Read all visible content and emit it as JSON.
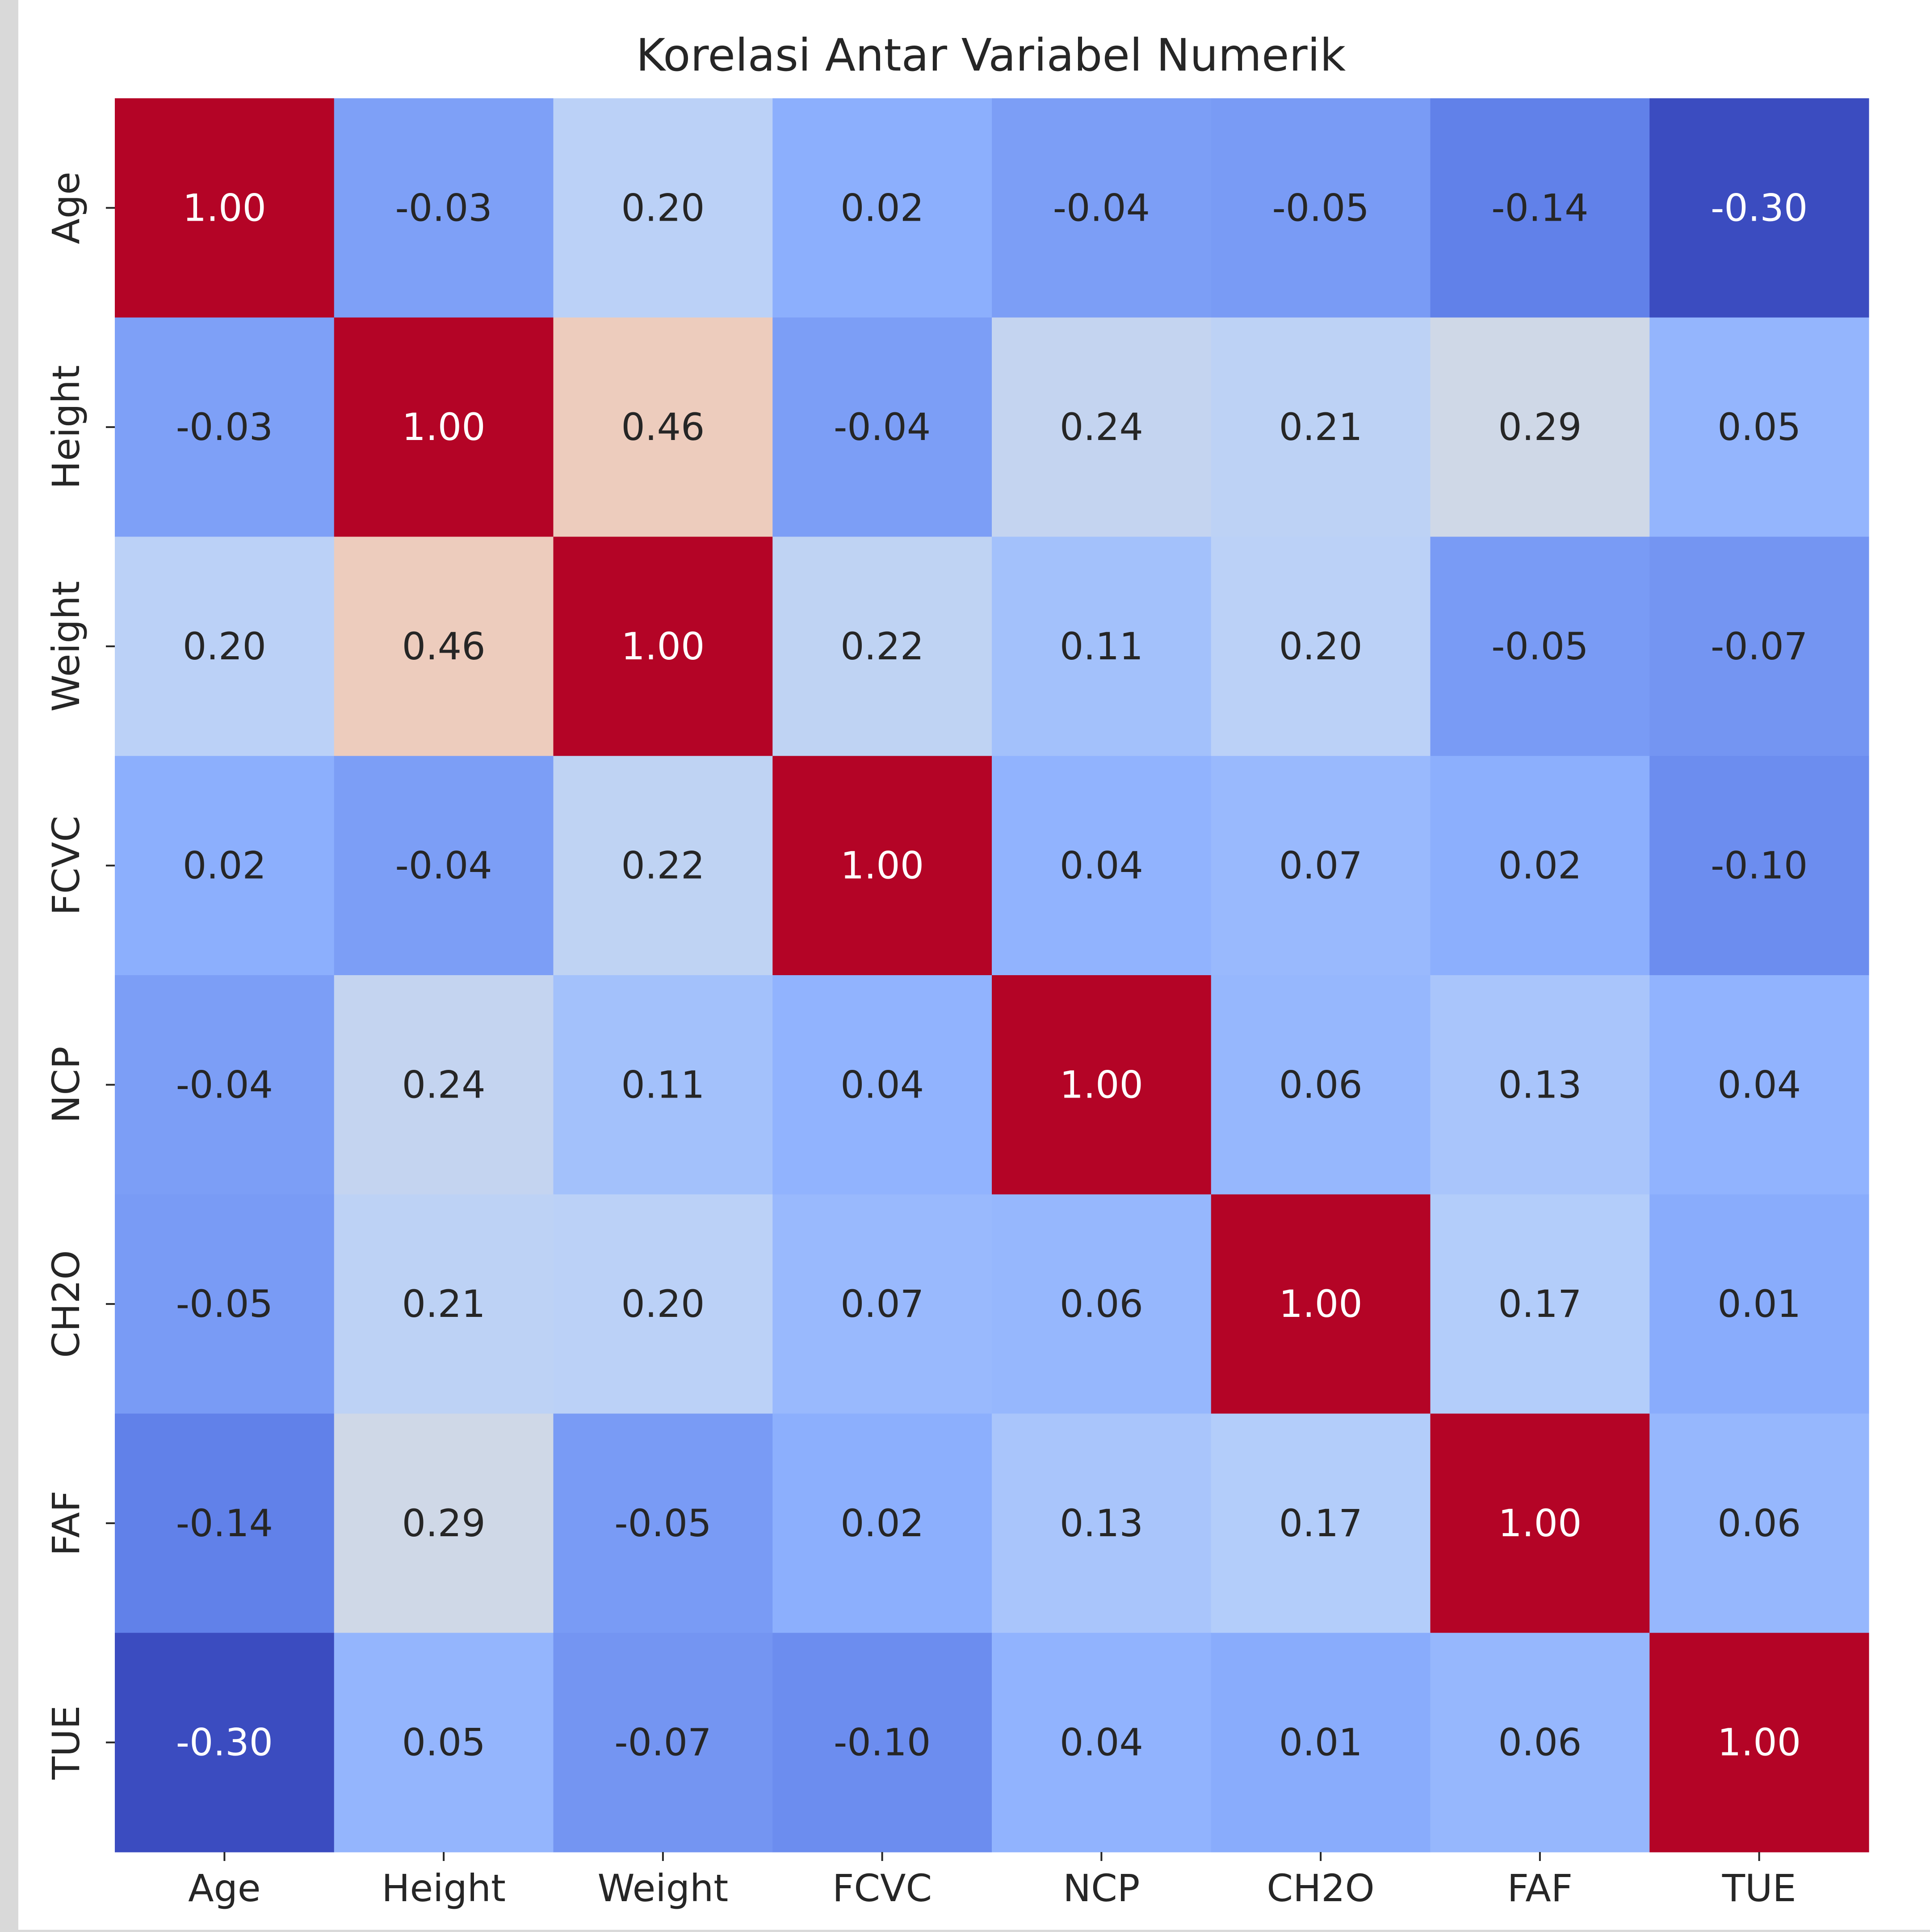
{
  "chart_data": {
    "type": "heatmap",
    "title": "Korelasi Antar Variabel Numerik",
    "xlabel": "",
    "ylabel": "",
    "categories": [
      "Age",
      "Height",
      "Weight",
      "FCVC",
      "NCP",
      "CH2O",
      "FAF",
      "TUE"
    ],
    "matrix": [
      [
        1.0,
        -0.03,
        0.2,
        0.02,
        -0.04,
        -0.05,
        -0.14,
        -0.3
      ],
      [
        -0.03,
        1.0,
        0.46,
        -0.04,
        0.24,
        0.21,
        0.29,
        0.05
      ],
      [
        0.2,
        0.46,
        1.0,
        0.22,
        0.11,
        0.2,
        -0.05,
        -0.07
      ],
      [
        0.02,
        -0.04,
        0.22,
        1.0,
        0.04,
        0.07,
        0.02,
        -0.1
      ],
      [
        -0.04,
        0.24,
        0.11,
        0.04,
        1.0,
        0.06,
        0.13,
        0.04
      ],
      [
        -0.05,
        0.21,
        0.2,
        0.07,
        0.06,
        1.0,
        0.17,
        0.01
      ],
      [
        -0.14,
        0.29,
        -0.05,
        0.02,
        0.13,
        0.17,
        1.0,
        0.06
      ],
      [
        -0.3,
        0.05,
        -0.07,
        -0.1,
        0.04,
        0.01,
        0.06,
        1.0
      ]
    ],
    "value_format": "0.00",
    "colormap": "coolwarm",
    "vmin": -0.3,
    "vmax": 1.0,
    "colorbar": false,
    "annotations": true
  },
  "colors": {
    "cold": "#3b4cc0",
    "mid": "#dddddd",
    "hot": "#b40426",
    "text_dark": "#262626",
    "text_light": "#ffffff"
  }
}
